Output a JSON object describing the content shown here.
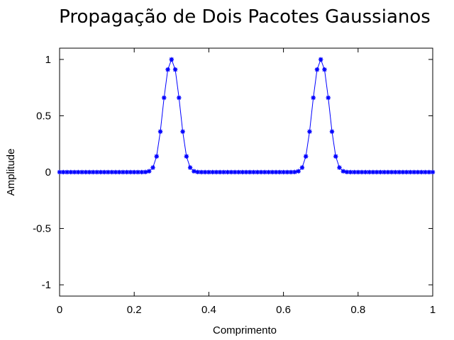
{
  "chart_data": {
    "type": "line",
    "title": "Propagação de Dois Pacotes Gaussianos",
    "xlabel": "Comprimento",
    "ylabel": "Amplitude",
    "xlim": [
      0,
      1
    ],
    "ylim": [
      -1.1,
      1.1
    ],
    "xticks": [
      {
        "value": 0,
        "label": "0"
      },
      {
        "value": 0.2,
        "label": "0.2"
      },
      {
        "value": 0.4,
        "label": "0.4"
      },
      {
        "value": 0.6,
        "label": "0.6"
      },
      {
        "value": 0.8,
        "label": "0.8"
      },
      {
        "value": 1,
        "label": "1"
      }
    ],
    "yticks": [
      {
        "value": 1,
        "label": "1"
      },
      {
        "value": 0.5,
        "label": "0.5"
      },
      {
        "value": 0,
        "label": "0"
      },
      {
        "value": -0.5,
        "label": "-0.5"
      },
      {
        "value": -1,
        "label": "-1"
      }
    ],
    "grid": false,
    "legend": "none",
    "series": [
      {
        "color": "#0000ff",
        "marker": "asterisk",
        "x": [
          0.0,
          0.01,
          0.02,
          0.03,
          0.04,
          0.05,
          0.06,
          0.07,
          0.08,
          0.09,
          0.1,
          0.11,
          0.12,
          0.13,
          0.14,
          0.15,
          0.16,
          0.17,
          0.18,
          0.19,
          0.2,
          0.21,
          0.22,
          0.23,
          0.24,
          0.25,
          0.26,
          0.27,
          0.28,
          0.29,
          0.3,
          0.31,
          0.32,
          0.33,
          0.34,
          0.35,
          0.36,
          0.37,
          0.38,
          0.39,
          0.4,
          0.41,
          0.42,
          0.43,
          0.44,
          0.45,
          0.46,
          0.47,
          0.48,
          0.49,
          0.5,
          0.51,
          0.52,
          0.53,
          0.54,
          0.55,
          0.56,
          0.57,
          0.58,
          0.59,
          0.6,
          0.61,
          0.62,
          0.63,
          0.64,
          0.65,
          0.66,
          0.67,
          0.68,
          0.69,
          0.7,
          0.71,
          0.72,
          0.73,
          0.74,
          0.75,
          0.76,
          0.77,
          0.78,
          0.79,
          0.8,
          0.81,
          0.82,
          0.83,
          0.84,
          0.85,
          0.86,
          0.87,
          0.88,
          0.89,
          0.9,
          0.91,
          0.92,
          0.93,
          0.94,
          0.95,
          0.96,
          0.97,
          0.98,
          0.99,
          1.0
        ],
        "y": [
          0,
          0,
          0,
          0,
          0,
          0,
          0,
          0,
          0,
          0,
          0,
          0,
          0,
          0,
          0,
          0,
          0,
          0,
          0,
          0,
          0,
          0,
          0,
          0.001,
          0.008,
          0.04,
          0.14,
          0.36,
          0.66,
          0.91,
          1.0,
          0.91,
          0.66,
          0.36,
          0.14,
          0.04,
          0.008,
          0.001,
          0,
          0,
          0,
          0,
          0,
          0,
          0,
          0,
          0,
          0,
          0,
          0,
          0,
          0,
          0,
          0,
          0,
          0,
          0,
          0,
          0,
          0,
          0,
          0,
          0,
          0.001,
          0.008,
          0.04,
          0.14,
          0.36,
          0.66,
          0.91,
          1.0,
          0.91,
          0.66,
          0.36,
          0.14,
          0.04,
          0.008,
          0.001,
          0,
          0,
          0,
          0,
          0,
          0,
          0,
          0,
          0,
          0,
          0,
          0,
          0,
          0,
          0,
          0,
          0,
          0,
          0,
          0,
          0,
          0,
          0
        ]
      }
    ]
  }
}
